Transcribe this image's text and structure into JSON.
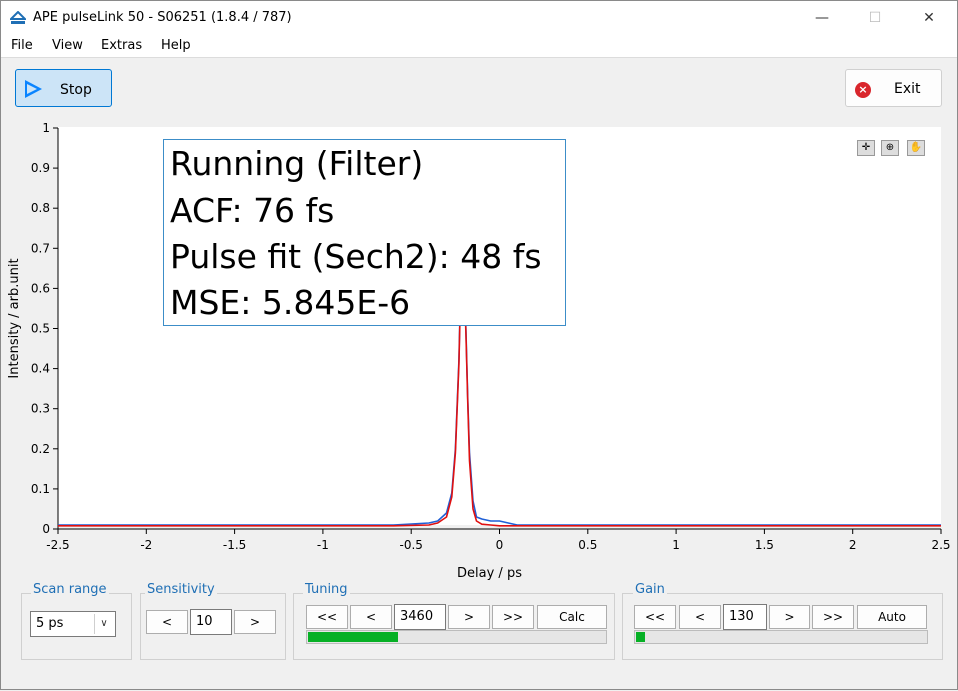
{
  "window": {
    "title": "APE pulseLink 50 - S06251 (1.8.4 / 787)",
    "app_icon": "ape-logo-icon"
  },
  "window_controls": {
    "minimize": "—",
    "maximize": "☐",
    "close": "✕"
  },
  "menu": [
    "File",
    "View",
    "Extras",
    "Help"
  ],
  "toolbar": {
    "stop_label": "Stop",
    "exit_label": "Exit",
    "stop_icon": "play-icon",
    "exit_icon": "exit-icon"
  },
  "status": {
    "line1": "Running (Filter)",
    "line2": "ACF: 76 fs",
    "line3": "Pulse fit (Sech2): 48 fs",
    "line4": "MSE: 5.845E-6"
  },
  "plot_tools": [
    "crosshair-icon",
    "zoom-icon",
    "pan-hand-icon"
  ],
  "chart_data": {
    "type": "line",
    "xlabel": "Delay / ps",
    "ylabel": "Intensity / arb.unit",
    "xlim": [
      -2.5,
      2.5
    ],
    "ylim": [
      0,
      1
    ],
    "xticks": [
      "-2.5",
      "-2",
      "-1.5",
      "-1",
      "-0.5",
      "0",
      "0.5",
      "1",
      "1.5",
      "2",
      "2.5"
    ],
    "yticks": [
      "0",
      "0.1",
      "0.2",
      "0.3",
      "0.4",
      "0.5",
      "0.6",
      "0.7",
      "0.8",
      "0.9",
      "1"
    ],
    "grid": false,
    "series": [
      {
        "color": "#1f5fd6",
        "x": [
          -2.5,
          -0.6,
          -0.4,
          -0.35,
          -0.3,
          -0.27,
          -0.25,
          -0.23,
          -0.22,
          -0.21,
          -0.2,
          -0.19,
          -0.18,
          -0.17,
          -0.15,
          -0.13,
          -0.1,
          -0.05,
          0,
          0.05,
          0.1,
          0.2,
          2.5
        ],
        "y": [
          0.01,
          0.01,
          0.015,
          0.02,
          0.04,
          0.09,
          0.2,
          0.42,
          0.6,
          0.65,
          0.62,
          0.5,
          0.33,
          0.19,
          0.07,
          0.03,
          0.025,
          0.02,
          0.02,
          0.015,
          0.01,
          0.01,
          0.01
        ]
      },
      {
        "color": "#e01010",
        "x": [
          -2.5,
          -0.6,
          -0.4,
          -0.35,
          -0.3,
          -0.27,
          -0.25,
          -0.23,
          -0.22,
          -0.21,
          -0.2,
          -0.19,
          -0.18,
          -0.17,
          -0.15,
          -0.13,
          -0.1,
          -0.05,
          0,
          2.5
        ],
        "y": [
          0.008,
          0.008,
          0.01,
          0.015,
          0.03,
          0.08,
          0.19,
          0.41,
          0.59,
          0.64,
          0.61,
          0.49,
          0.32,
          0.17,
          0.05,
          0.02,
          0.012,
          0.01,
          0.008,
          0.008
        ]
      }
    ]
  },
  "controls": {
    "scan_range": {
      "label": "Scan range",
      "value": "5 ps"
    },
    "sensitivity": {
      "label": "Sensitivity",
      "dec": "<",
      "value": "10",
      "inc": ">"
    },
    "tuning": {
      "label": "Tuning",
      "fast_dec": "<<",
      "dec": "<",
      "value": "3460",
      "inc": ">",
      "fast_inc": ">>",
      "action": "Calc",
      "progress": 0.3
    },
    "gain": {
      "label": "Gain",
      "fast_dec": "<<",
      "dec": "<",
      "value": "130",
      "inc": ">",
      "fast_inc": ">>",
      "action": "Auto",
      "progress": 0.03
    }
  }
}
